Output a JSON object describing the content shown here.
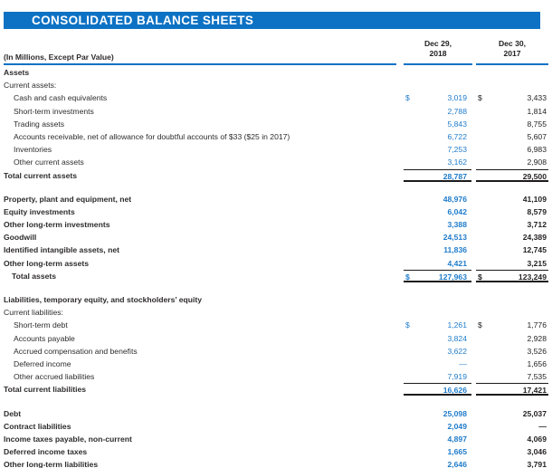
{
  "colors": {
    "accent": "#0d72c4",
    "value_2018": "#1f7cca",
    "text": "#2e2b2b"
  },
  "header": {
    "title": "CONSOLIDATED BALANCE SHEETS"
  },
  "table": {
    "caption": "(In Millions, Except Par Value)",
    "columns": [
      {
        "line1": "Dec 29,",
        "line2": "2018"
      },
      {
        "line1": "Dec 30,",
        "line2": "2017"
      }
    ],
    "rows": [
      {
        "type": "section",
        "label": "Assets"
      },
      {
        "type": "subsection",
        "label": "Current assets:"
      },
      {
        "type": "item",
        "label": "Cash and cash equivalents",
        "dollar": true,
        "v2018": "3,019",
        "v2017": "3,433"
      },
      {
        "type": "item",
        "label": "Short-term investments",
        "v2018": "2,788",
        "v2017": "1,814"
      },
      {
        "type": "item",
        "label": "Trading assets",
        "v2018": "5,843",
        "v2017": "8,755"
      },
      {
        "type": "item",
        "label": "Accounts receivable, net of allowance for doubtful accounts of $33 ($25 in 2017)",
        "v2018": "6,722",
        "v2017": "5,607"
      },
      {
        "type": "item",
        "label": "Inventories",
        "v2018": "7,253",
        "v2017": "6,983"
      },
      {
        "type": "item",
        "label": "Other current assets",
        "v2018": "3,162",
        "v2017": "2,908"
      },
      {
        "type": "total",
        "label": "Total current assets",
        "v2018": "28,787",
        "v2017": "29,500"
      },
      {
        "type": "spacer"
      },
      {
        "type": "bold",
        "label": "Property, plant and equipment, net",
        "v2018": "48,976",
        "v2017": "41,109"
      },
      {
        "type": "bold",
        "label": "Equity investments",
        "v2018": "6,042",
        "v2017": "8,579"
      },
      {
        "type": "bold",
        "label": "Other long-term investments",
        "v2018": "3,388",
        "v2017": "3,712"
      },
      {
        "type": "bold",
        "label": "Goodwill",
        "v2018": "24,513",
        "v2017": "24,389"
      },
      {
        "type": "bold",
        "label": "Identified intangible assets, net",
        "v2018": "11,836",
        "v2017": "12,745"
      },
      {
        "type": "bold",
        "label": "Other long-term assets",
        "v2018": "4,421",
        "v2017": "3,215"
      },
      {
        "type": "total",
        "indent": true,
        "label": "Total assets",
        "dollar": true,
        "v2018": "127,963",
        "v2017": "123,249"
      },
      {
        "type": "spacer"
      },
      {
        "type": "section",
        "label": "Liabilities, temporary equity, and stockholders’ equity"
      },
      {
        "type": "subsection",
        "label": "Current liabilities:"
      },
      {
        "type": "item",
        "label": "Short-term debt",
        "dollar": true,
        "v2018": "1,261",
        "v2017": "1,776"
      },
      {
        "type": "item",
        "label": "Accounts payable",
        "v2018": "3,824",
        "v2017": "2,928"
      },
      {
        "type": "item",
        "label": "Accrued compensation and benefits",
        "v2018": "3,622",
        "v2017": "3,526"
      },
      {
        "type": "item",
        "label": "Deferred income",
        "v2018": "—",
        "v2017": "1,656"
      },
      {
        "type": "item",
        "label": "Other accrued liabilities",
        "v2018": "7,919",
        "v2017": "7,535"
      },
      {
        "type": "total",
        "label": "Total current liabilities",
        "v2018": "16,626",
        "v2017": "17,421"
      },
      {
        "type": "spacer"
      },
      {
        "type": "bold",
        "label": "Debt",
        "v2018": "25,098",
        "v2017": "25,037"
      },
      {
        "type": "bold",
        "label": "Contract liabilities",
        "v2018": "2,049",
        "v2017": "—"
      },
      {
        "type": "bold",
        "label": "Income taxes payable, non-current",
        "v2018": "4,897",
        "v2017": "4,069"
      },
      {
        "type": "bold",
        "label": "Deferred income taxes",
        "v2018": "1,665",
        "v2017": "3,046"
      },
      {
        "type": "bold",
        "label": "Other long-term liabilities",
        "v2018": "2,646",
        "v2017": "3,791"
      }
    ]
  }
}
